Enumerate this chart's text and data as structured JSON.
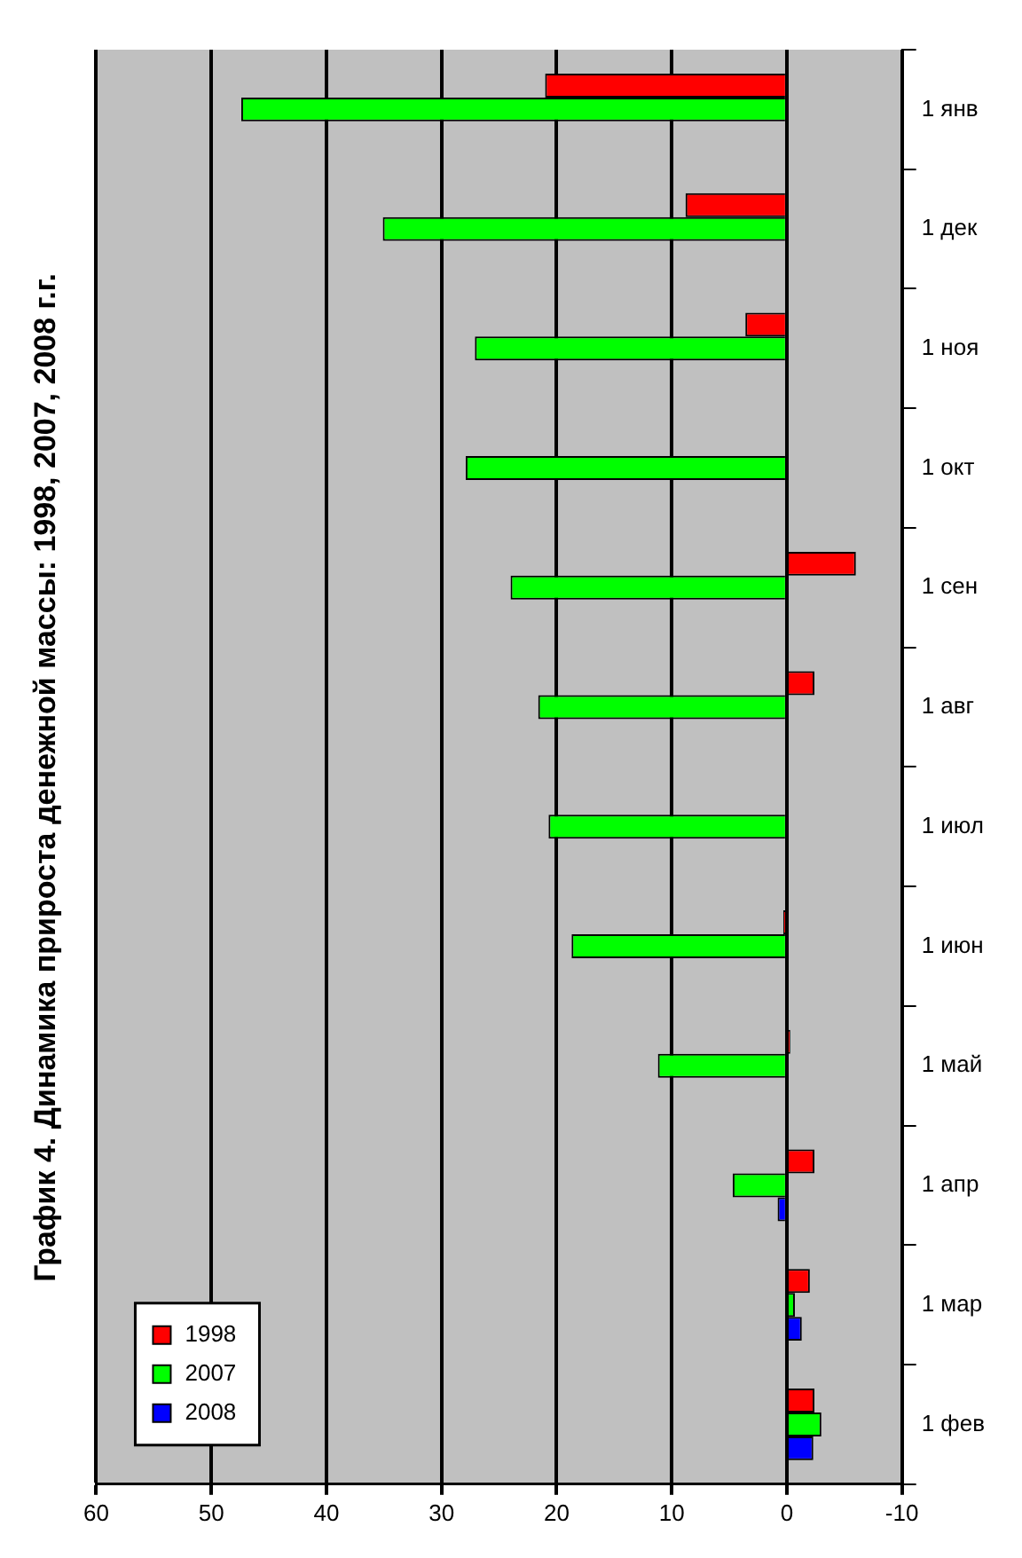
{
  "chart_data": {
    "type": "bar",
    "orientation": "horizontal",
    "title": "График 4. Динамика прироста денежной массы: 1998, 2007, 2008 г.г.",
    "categories": [
      "1 янв",
      "1 дек",
      "1 ноя",
      "1 окт",
      "1 сен",
      "1 авг",
      "1 июл",
      "1 июн",
      "1 май",
      "1 апр",
      "1 мар",
      "1 фев"
    ],
    "series": [
      {
        "name": "1998",
        "color": "#ff0000",
        "values": [
          21,
          8.8,
          3.6,
          null,
          -6,
          -2.4,
          null,
          0.3,
          -0.3,
          -2.4,
          -2,
          -2.4
        ]
      },
      {
        "name": "2007",
        "color": "#00ff00",
        "values": [
          47.4,
          35.1,
          27.1,
          27.9,
          24,
          21.6,
          20.7,
          18.7,
          11.2,
          4.7,
          -0.7,
          -3
        ]
      },
      {
        "name": "2008",
        "color": "#0000ff",
        "values": [
          null,
          null,
          null,
          null,
          null,
          null,
          null,
          null,
          null,
          0.8,
          -1.3,
          -2.3
        ]
      }
    ],
    "xlim": [
      60,
      -10
    ],
    "xticks": [
      60,
      50,
      40,
      30,
      20,
      10,
      0,
      -10
    ],
    "grid": "x",
    "legend": "bottom left"
  }
}
